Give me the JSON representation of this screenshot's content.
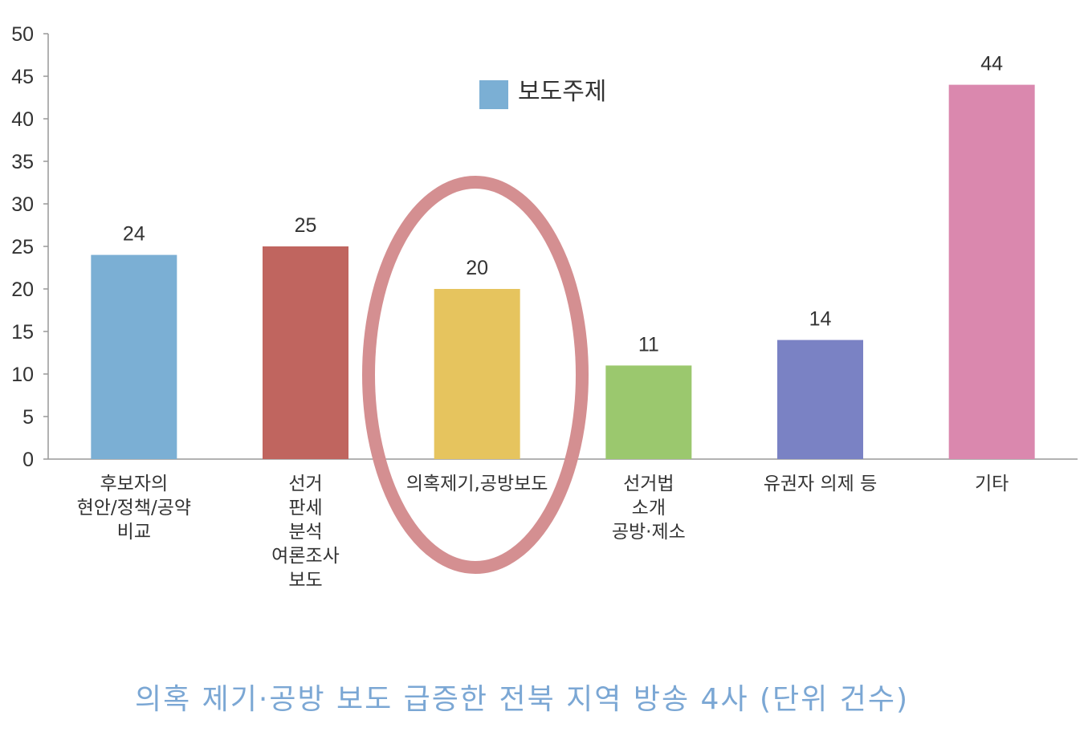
{
  "chart_data": {
    "type": "bar",
    "categories": [
      [
        "후보자의",
        "현안/정책/공약",
        "비교"
      ],
      [
        "선거",
        "판세",
        "분석",
        "여론조사",
        "보도"
      ],
      [
        "의혹제기,공방보도"
      ],
      [
        "선거법",
        "소개",
        "공방·제소"
      ],
      [
        "유권자 의제 등"
      ],
      [
        "기타"
      ]
    ],
    "values": [
      24,
      25,
      20,
      11,
      14,
      44
    ],
    "colors": [
      "#7bafd4",
      "#c0655f",
      "#e6c45e",
      "#9bc86e",
      "#7a82c4",
      "#da88ae"
    ],
    "legend": {
      "label": "보도주제",
      "color": "#7bafd4",
      "position": "top-center"
    },
    "ylim": [
      0,
      50
    ],
    "yticks": [
      0,
      5,
      10,
      15,
      20,
      25,
      30,
      35,
      40,
      45,
      50
    ],
    "grid": false,
    "highlight": {
      "category_index": 2,
      "shape": "ellipse",
      "color": "#d48f91"
    }
  },
  "caption": "의혹 제기·공방 보도 급증한 전북 지역 방송 4사 (단위 건수)",
  "colors": {
    "caption": "#7ba7d4",
    "axis": "#999999"
  }
}
